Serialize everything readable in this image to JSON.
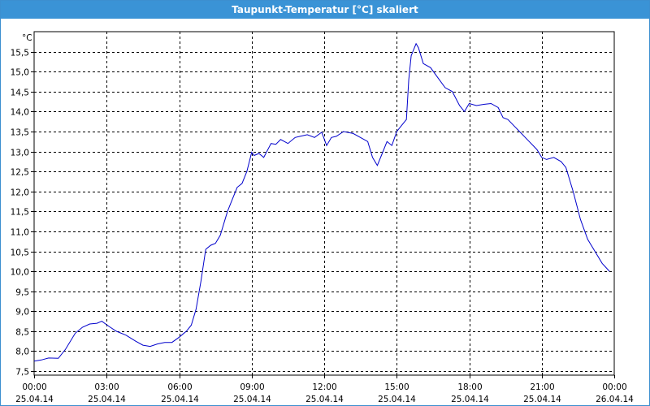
{
  "window": {
    "title": "Taupunkt-Temperatur [°C] skaliert"
  },
  "chart_data": {
    "type": "line",
    "title": "Taupunkt-Temperatur [°C] skaliert",
    "ylabel": "°C",
    "xlabel": "",
    "ylim": [
      7.4,
      16.0
    ],
    "xlim": [
      0,
      24
    ],
    "grid": true,
    "line_color": "#0000cc",
    "y_ticks": [
      {
        "value": 7.5,
        "label": "7,5"
      },
      {
        "value": 8.0,
        "label": "8,0"
      },
      {
        "value": 8.5,
        "label": "8,5"
      },
      {
        "value": 9.0,
        "label": "9,0"
      },
      {
        "value": 9.5,
        "label": "9,5"
      },
      {
        "value": 10.0,
        "label": "10,0"
      },
      {
        "value": 10.5,
        "label": "10,5"
      },
      {
        "value": 11.0,
        "label": "11,0"
      },
      {
        "value": 11.5,
        "label": "11,5"
      },
      {
        "value": 12.0,
        "label": "12,0"
      },
      {
        "value": 12.5,
        "label": "12,5"
      },
      {
        "value": 13.0,
        "label": "13,0"
      },
      {
        "value": 13.5,
        "label": "13,5"
      },
      {
        "value": 14.0,
        "label": "14,0"
      },
      {
        "value": 14.5,
        "label": "14,5"
      },
      {
        "value": 15.0,
        "label": "15,0"
      },
      {
        "value": 15.5,
        "label": "15,5"
      }
    ],
    "x_ticks": [
      {
        "value": 0,
        "time": "00:00",
        "date": "25.04.14"
      },
      {
        "value": 3,
        "time": "03:00",
        "date": "25.04.14"
      },
      {
        "value": 6,
        "time": "06:00",
        "date": "25.04.14"
      },
      {
        "value": 9,
        "time": "09:00",
        "date": "25.04.14"
      },
      {
        "value": 12,
        "time": "12:00",
        "date": "25.04.14"
      },
      {
        "value": 15,
        "time": "15:00",
        "date": "25.04.14"
      },
      {
        "value": 18,
        "time": "18:00",
        "date": "25.04.14"
      },
      {
        "value": 21,
        "time": "21:00",
        "date": "25.04.14"
      },
      {
        "value": 24,
        "time": "00:00",
        "date": "26.04.14"
      }
    ],
    "series": [
      {
        "x": [
          0,
          0.3,
          0.6,
          1.0,
          1.3,
          1.7,
          2.0,
          2.3,
          2.6,
          2.8,
          3.1,
          3.4,
          3.8,
          4.2,
          4.5,
          4.8,
          5.1,
          5.4,
          5.7,
          6.0,
          6.3,
          6.5,
          6.7,
          6.9,
          7.1,
          7.3,
          7.5,
          7.7,
          8.0,
          8.2,
          8.4,
          8.6,
          8.8,
          9.0,
          9.1,
          9.3,
          9.5,
          9.8,
          10.0,
          10.2,
          10.5,
          10.8,
          11.0,
          11.3,
          11.6,
          11.9,
          12.1,
          12.3,
          12.5,
          12.8,
          13.2,
          13.5,
          13.8,
          14.0,
          14.2,
          14.4,
          14.6,
          14.8,
          15.0,
          15.2,
          15.4,
          15.5,
          15.6,
          15.8,
          15.9,
          16.1,
          16.4,
          16.7,
          17.0,
          17.3,
          17.6,
          17.8,
          18.0,
          18.3,
          18.6,
          18.9,
          19.2,
          19.4,
          19.6,
          20.0,
          20.4,
          20.8,
          21.0,
          21.2,
          21.5,
          21.8,
          22.0,
          22.3,
          22.6,
          22.9,
          23.2,
          23.5,
          23.8
        ],
        "y": [
          7.75,
          7.78,
          7.83,
          7.82,
          8.05,
          8.45,
          8.6,
          8.68,
          8.7,
          8.75,
          8.62,
          8.5,
          8.4,
          8.25,
          8.15,
          8.12,
          8.18,
          8.22,
          8.22,
          8.35,
          8.5,
          8.65,
          9.05,
          9.75,
          10.55,
          10.65,
          10.7,
          10.9,
          11.5,
          11.8,
          12.1,
          12.2,
          12.5,
          12.98,
          12.9,
          12.95,
          12.85,
          13.2,
          13.18,
          13.3,
          13.2,
          13.35,
          13.38,
          13.42,
          13.35,
          13.48,
          13.15,
          13.35,
          13.38,
          13.5,
          13.45,
          13.35,
          13.25,
          12.85,
          12.65,
          12.95,
          13.25,
          13.15,
          13.5,
          13.65,
          13.8,
          14.8,
          15.4,
          15.7,
          15.6,
          15.2,
          15.1,
          14.85,
          14.6,
          14.5,
          14.15,
          14.0,
          14.2,
          14.15,
          14.18,
          14.2,
          14.1,
          13.85,
          13.8,
          13.55,
          13.3,
          13.05,
          12.85,
          12.8,
          12.85,
          12.75,
          12.6,
          12.0,
          11.3,
          10.8,
          10.5,
          10.2,
          10.0
        ]
      }
    ]
  }
}
